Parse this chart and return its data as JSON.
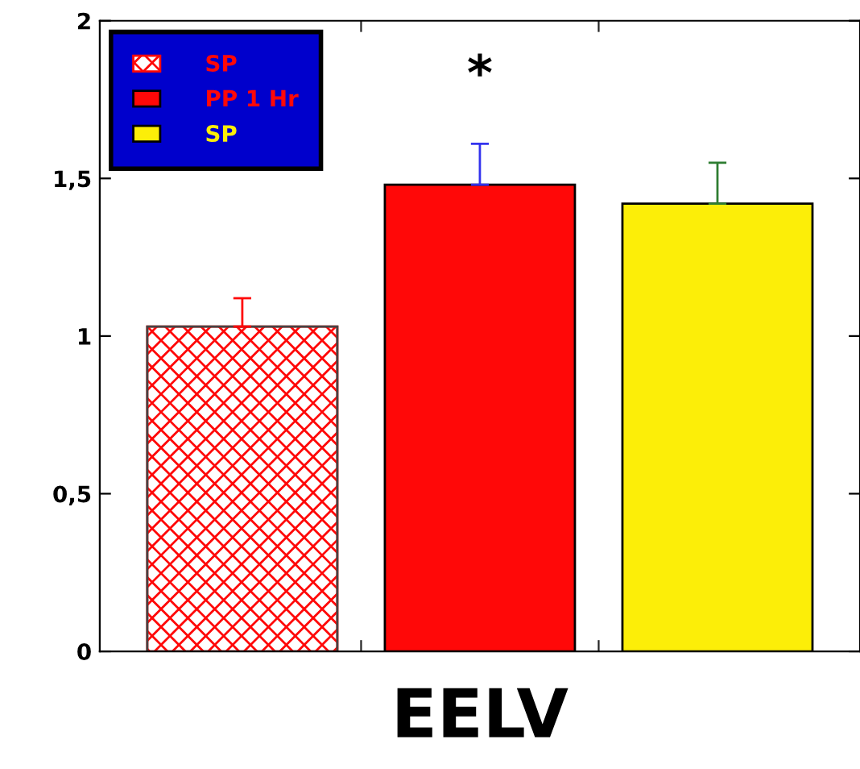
{
  "chart_data": {
    "type": "bar",
    "xlabel": "EELV",
    "categories": [
      null,
      null,
      null
    ],
    "series": [
      {
        "name": "SP",
        "color": "#ff0808",
        "values": [
          1.03,
          null,
          null
        ],
        "errors": [
          0.09,
          null,
          null
        ]
      },
      {
        "name": "PP 1 Hr",
        "color": "#ff0808",
        "values": [
          null,
          1.48,
          null
        ],
        "errors": [
          null,
          0.13,
          null
        ]
      },
      {
        "name": "SP",
        "color": "#fcee08",
        "values": [
          null,
          null,
          1.42
        ],
        "errors": [
          null,
          null,
          0.13
        ]
      }
    ],
    "ylim": [
      0,
      2
    ],
    "yticks": [
      0,
      {
        "value": 0.5,
        "label": "0,5"
      },
      1,
      {
        "value": 1.5,
        "label": "1,5"
      },
      2
    ],
    "annotations": [
      "*"
    ],
    "legend": "top left",
    "grid": false
  }
}
